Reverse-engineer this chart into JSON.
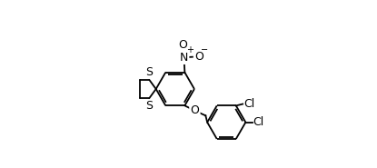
{
  "background": "#ffffff",
  "line_color": "#000000",
  "lw": 1.3,
  "dbo": 0.012,
  "fs": 9,
  "figsize": [
    4.15,
    1.85
  ],
  "dpi": 100,
  "xlim": [
    0.0,
    1.0
  ],
  "ylim": [
    0.0,
    1.0
  ]
}
